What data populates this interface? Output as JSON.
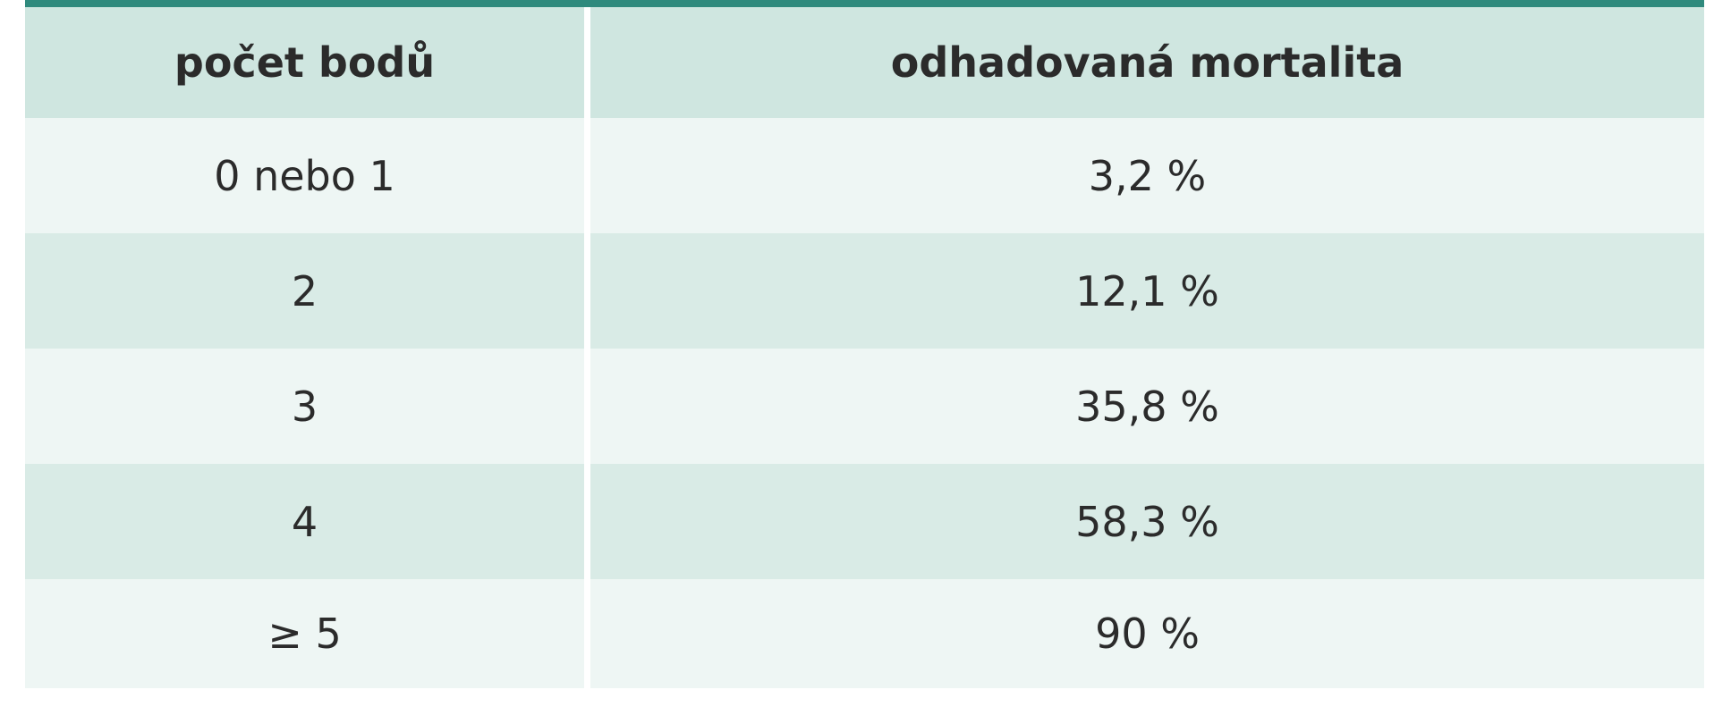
{
  "table": {
    "headers": [
      "počet bodů",
      "odhadovaná mortalita"
    ],
    "rows": [
      [
        "0 nebo 1",
        "3,2 %"
      ],
      [
        "2",
        "12,1 %"
      ],
      [
        "3",
        "35,8 %"
      ],
      [
        "4",
        "58,3 %"
      ],
      [
        "≥ 5",
        "90 %"
      ]
    ]
  }
}
